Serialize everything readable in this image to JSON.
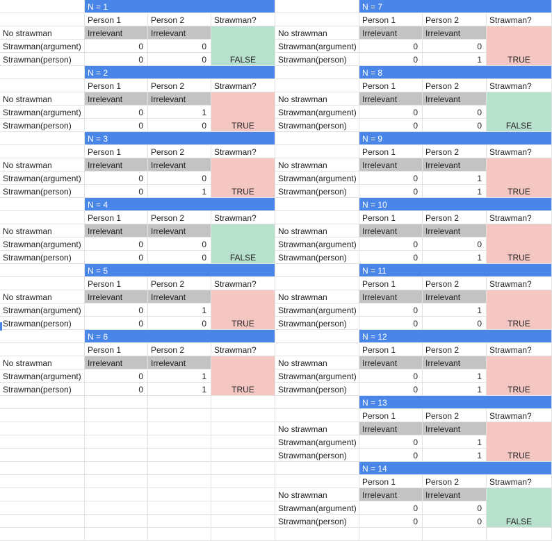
{
  "labels": {
    "no_strawman": "No strawman",
    "strawman_argument": "Strawman(argument)",
    "strawman_person": "Strawman(person)",
    "person1": "Person 1",
    "person2": "Person 2",
    "strawman_q": "Strawman?",
    "irrelevant": "Irrelevant"
  },
  "colors": {
    "header": "#4a86e8",
    "gray": "#c3c3c3",
    "true_bg": "#f4c7c3",
    "false_bg": "#b7e1cd"
  },
  "blocks": [
    {
      "n": "N = 1",
      "arg": [
        "0",
        "0"
      ],
      "person": [
        "0",
        "0"
      ],
      "result": "FALSE"
    },
    {
      "n": "N = 2",
      "arg": [
        "0",
        "1"
      ],
      "person": [
        "0",
        "0"
      ],
      "result": "TRUE"
    },
    {
      "n": "N = 3",
      "arg": [
        "0",
        "0"
      ],
      "person": [
        "0",
        "1"
      ],
      "result": "TRUE"
    },
    {
      "n": "N = 4",
      "arg": [
        "0",
        "0"
      ],
      "person": [
        "0",
        "0"
      ],
      "result": "FALSE"
    },
    {
      "n": "N = 5",
      "arg": [
        "0",
        "1"
      ],
      "person": [
        "0",
        "0"
      ],
      "result": "TRUE"
    },
    {
      "n": "N = 6",
      "arg": [
        "0",
        "1"
      ],
      "person": [
        "0",
        "1"
      ],
      "result": "TRUE"
    },
    {
      "n": "N = 7",
      "arg": [
        "0",
        "0"
      ],
      "person": [
        "0",
        "1"
      ],
      "result": "TRUE"
    },
    {
      "n": "N = 8",
      "arg": [
        "0",
        "0"
      ],
      "person": [
        "0",
        "0"
      ],
      "result": "FALSE"
    },
    {
      "n": "N = 9",
      "arg": [
        "0",
        "1"
      ],
      "person": [
        "0",
        "1"
      ],
      "result": "TRUE"
    },
    {
      "n": "N = 10",
      "arg": [
        "0",
        "0"
      ],
      "person": [
        "0",
        "1"
      ],
      "result": "TRUE"
    },
    {
      "n": "N = 11",
      "arg": [
        "0",
        "1"
      ],
      "person": [
        "0",
        "0"
      ],
      "result": "TRUE"
    },
    {
      "n": "N = 12",
      "arg": [
        "0",
        "1"
      ],
      "person": [
        "0",
        "1"
      ],
      "result": "TRUE"
    },
    {
      "n": "N = 13",
      "arg": [
        "0",
        "1"
      ],
      "person": [
        "0",
        "1"
      ],
      "result": "TRUE"
    },
    {
      "n": "N = 14",
      "arg": [
        "0",
        "0"
      ],
      "person": [
        "0",
        "0"
      ],
      "result": "FALSE"
    }
  ]
}
